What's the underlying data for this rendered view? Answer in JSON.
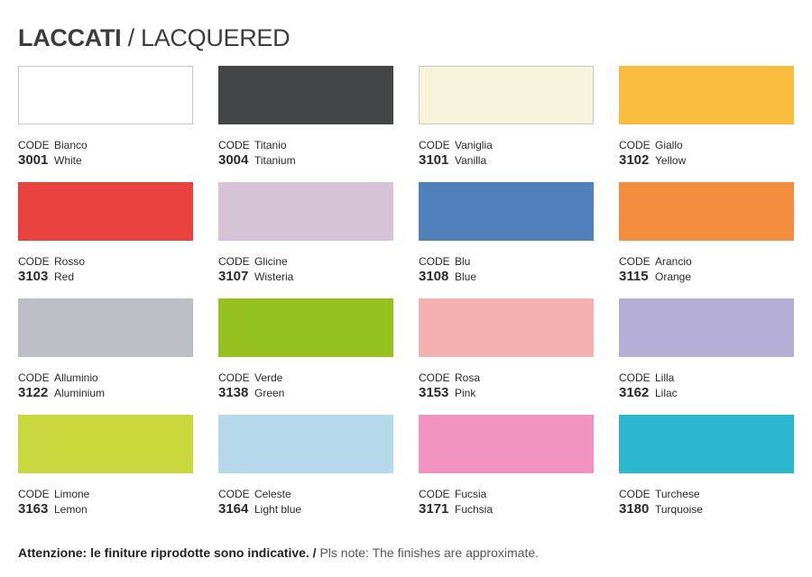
{
  "header": {
    "title_it": "LACCATI",
    "title_sep": " / ",
    "title_en": "LACQUERED"
  },
  "code_label": "CODE",
  "finishes": [
    {
      "code": "3001",
      "name_it": "Bianco",
      "name_en": "White",
      "color": "#ffffff",
      "bordered": true
    },
    {
      "code": "3004",
      "name_it": "Titanio",
      "name_en": "Titanium",
      "color": "#444546",
      "bordered": false
    },
    {
      "code": "3101",
      "name_it": "Vaniglia",
      "name_en": "Vanilla",
      "color": "#f8f3db",
      "bordered": true
    },
    {
      "code": "3102",
      "name_it": "Giallo",
      "name_en": "Yellow",
      "color": "#fbbd3e",
      "bordered": false
    },
    {
      "code": "3103",
      "name_it": "Rosso",
      "name_en": "Red",
      "color": "#e8413e",
      "bordered": false
    },
    {
      "code": "3107",
      "name_it": "Glicine",
      "name_en": "Wisteria",
      "color": "#d7c3d6",
      "bordered": false
    },
    {
      "code": "3108",
      "name_it": "Blu",
      "name_en": "Blue",
      "color": "#4f80b9",
      "bordered": false
    },
    {
      "code": "3115",
      "name_it": "Arancio",
      "name_en": "Orange",
      "color": "#f38e3f",
      "bordered": false
    },
    {
      "code": "3122",
      "name_it": "Alluminio",
      "name_en": "Aluminium",
      "color": "#bcc0c4",
      "bordered": false
    },
    {
      "code": "3138",
      "name_it": "Verde",
      "name_en": "Green",
      "color": "#95c21f",
      "bordered": false
    },
    {
      "code": "3153",
      "name_it": "Rosa",
      "name_en": "Pink",
      "color": "#f5b0b1",
      "bordered": false
    },
    {
      "code": "3162",
      "name_it": "Lilla",
      "name_en": "Lilac",
      "color": "#b5afd7",
      "bordered": false
    },
    {
      "code": "3163",
      "name_it": "Limone",
      "name_en": "Lemon",
      "color": "#c9d83c",
      "bordered": false
    },
    {
      "code": "3164",
      "name_it": "Celeste",
      "name_en": "Light blue",
      "color": "#b5d9ea",
      "bordered": false
    },
    {
      "code": "3171",
      "name_it": "Fucsia",
      "name_en": "Fuchsia",
      "color": "#f293bf",
      "bordered": false
    },
    {
      "code": "3180",
      "name_it": "Turchese",
      "name_en": "Turquoise",
      "color": "#2ab8d0",
      "bordered": false
    }
  ],
  "footnote": {
    "it": "Attenzione: le finiture riprodotte sono indicative. /",
    "en": " Pls note: The finishes are approximate."
  }
}
